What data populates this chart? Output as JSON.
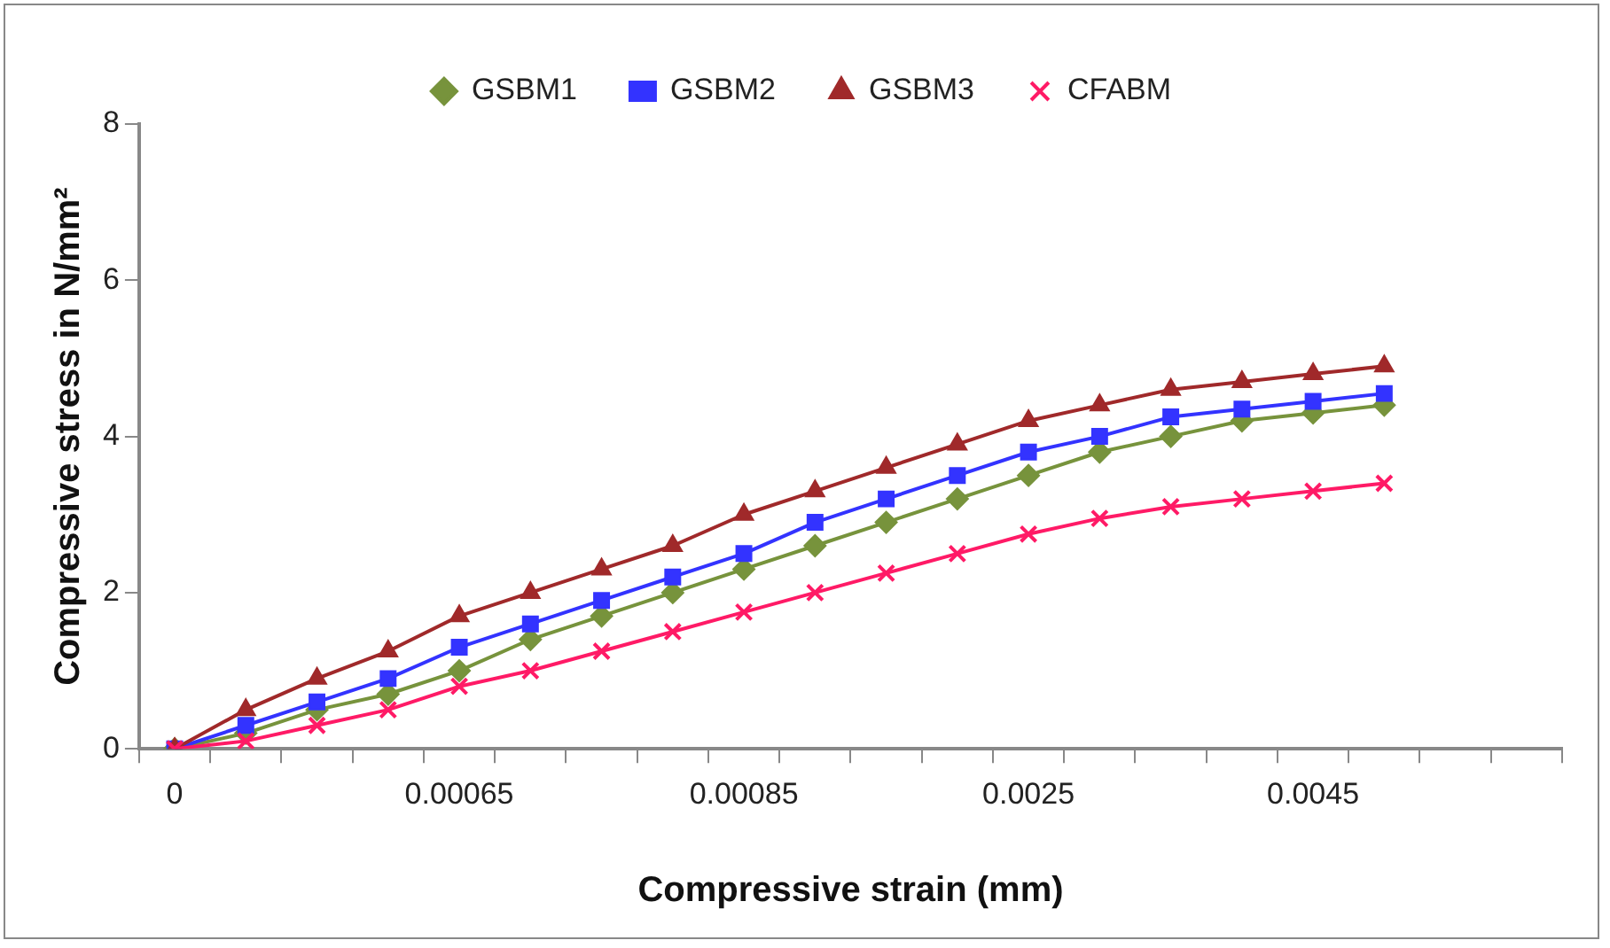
{
  "chart_data": {
    "type": "line",
    "xlabel": "Compressive strain (mm)",
    "ylabel": "Compressive stress in N/mm²",
    "categories": [
      "0",
      null,
      null,
      null,
      "0.00065",
      null,
      null,
      null,
      "0.00085",
      null,
      null,
      null,
      "0.0025",
      null,
      null,
      null,
      "0.0045",
      null,
      null,
      null
    ],
    "series": [
      {
        "name": "GSBM1",
        "color": "#77933c",
        "marker": "diamond",
        "values": [
          0,
          0.2,
          0.5,
          0.7,
          1.0,
          1.4,
          1.7,
          2.0,
          2.3,
          2.6,
          2.9,
          3.2,
          3.5,
          3.8,
          4.0,
          4.2,
          4.3,
          4.4,
          null,
          null
        ]
      },
      {
        "name": "GSBM2",
        "color": "#3333ff",
        "marker": "square",
        "values": [
          0,
          0.3,
          0.6,
          0.9,
          1.3,
          1.6,
          1.9,
          2.2,
          2.5,
          2.9,
          3.2,
          3.5,
          3.8,
          4.0,
          4.25,
          4.35,
          4.45,
          4.55,
          null,
          null
        ]
      },
      {
        "name": "GSBM3",
        "color": "#a0292a",
        "marker": "triangle",
        "values": [
          0,
          0.5,
          0.9,
          1.25,
          1.7,
          2.0,
          2.3,
          2.6,
          3.0,
          3.3,
          3.6,
          3.9,
          4.2,
          4.4,
          4.6,
          4.7,
          4.8,
          4.9,
          null,
          null
        ]
      },
      {
        "name": "CFABM",
        "color": "#ff1a66",
        "marker": "cross",
        "values": [
          0,
          0.1,
          0.3,
          0.5,
          0.8,
          1.0,
          1.25,
          1.5,
          1.75,
          2.0,
          2.25,
          2.5,
          2.75,
          2.95,
          3.1,
          3.2,
          3.3,
          3.4,
          null,
          null
        ]
      }
    ],
    "ylim": [
      0,
      8
    ],
    "yticks": [
      0,
      2,
      4,
      6,
      8
    ],
    "grid": false,
    "legend": "top"
  }
}
